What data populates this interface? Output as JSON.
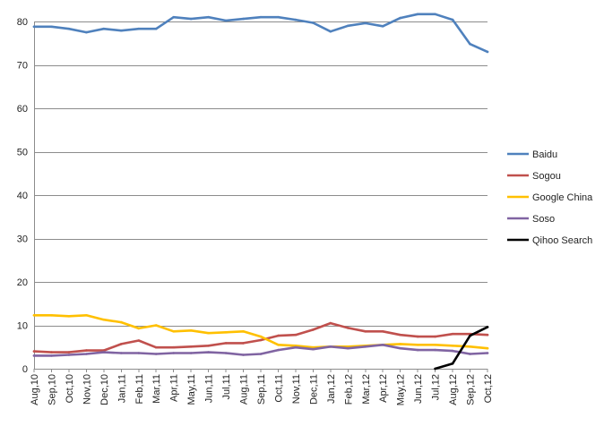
{
  "chart_data": {
    "type": "line",
    "title": "",
    "xlabel": "",
    "ylabel": "",
    "ylim": [
      0,
      80
    ],
    "yticks": [
      0,
      10,
      20,
      30,
      40,
      50,
      60,
      70,
      80
    ],
    "grid": "horizontal",
    "legend_position": "right",
    "categories": [
      "Aug,10",
      "Sep,10",
      "Oct,10",
      "Nov,10",
      "Dec,10",
      "Jan,11",
      "Feb,11",
      "Mar,11",
      "Apr,11",
      "May,11",
      "Jun,11",
      "Jul,11",
      "Aug,11",
      "Sep,11",
      "Oct,11",
      "Nov,11",
      "Dec,11",
      "Jan,12",
      "Feb,12",
      "Mar,12",
      "Apr,12",
      "May,12",
      "Jun,12",
      "Jul,12",
      "Aug,12",
      "Sep,12",
      "Oct,12"
    ],
    "series": [
      {
        "name": "Baidu",
        "color": "#4f81bd",
        "values": [
          78.8,
          78.8,
          78.3,
          77.5,
          78.3,
          77.9,
          78.3,
          78.3,
          81.0,
          80.6,
          81.0,
          80.2,
          80.6,
          81.0,
          81.0,
          80.4,
          79.7,
          77.7,
          79.0,
          79.6,
          78.9,
          80.8,
          81.7,
          81.7,
          80.4,
          74.8,
          73.0
        ]
      },
      {
        "name": "Sogou",
        "color": "#c0504d",
        "values": [
          4.0,
          3.8,
          3.8,
          4.2,
          4.2,
          5.7,
          6.5,
          4.9,
          4.9,
          5.1,
          5.3,
          5.9,
          5.9,
          6.6,
          7.6,
          7.8,
          9.0,
          10.5,
          9.4,
          8.6,
          8.6,
          7.8,
          7.4,
          7.4,
          8.0,
          8.0,
          7.8
        ]
      },
      {
        "name": "Google China",
        "color": "#ffc000",
        "values": [
          12.3,
          12.3,
          12.1,
          12.3,
          11.3,
          10.7,
          9.3,
          10.0,
          8.6,
          8.8,
          8.2,
          8.4,
          8.6,
          7.4,
          5.5,
          5.3,
          4.9,
          5.1,
          5.1,
          5.3,
          5.5,
          5.7,
          5.5,
          5.5,
          5.3,
          5.1,
          4.7
        ]
      },
      {
        "name": "Soso",
        "color": "#8064a2",
        "values": [
          3.0,
          3.0,
          3.2,
          3.4,
          3.8,
          3.6,
          3.6,
          3.4,
          3.6,
          3.6,
          3.8,
          3.6,
          3.2,
          3.4,
          4.3,
          4.9,
          4.5,
          5.1,
          4.7,
          5.1,
          5.5,
          4.7,
          4.3,
          4.3,
          4.1,
          3.4,
          3.6
        ]
      },
      {
        "name": "Qihoo Search",
        "color": "#000000",
        "values": [
          null,
          null,
          null,
          null,
          null,
          null,
          null,
          null,
          null,
          null,
          null,
          null,
          null,
          null,
          null,
          null,
          null,
          null,
          null,
          null,
          null,
          null,
          null,
          0.0,
          1.2,
          7.6,
          9.6
        ]
      }
    ]
  }
}
